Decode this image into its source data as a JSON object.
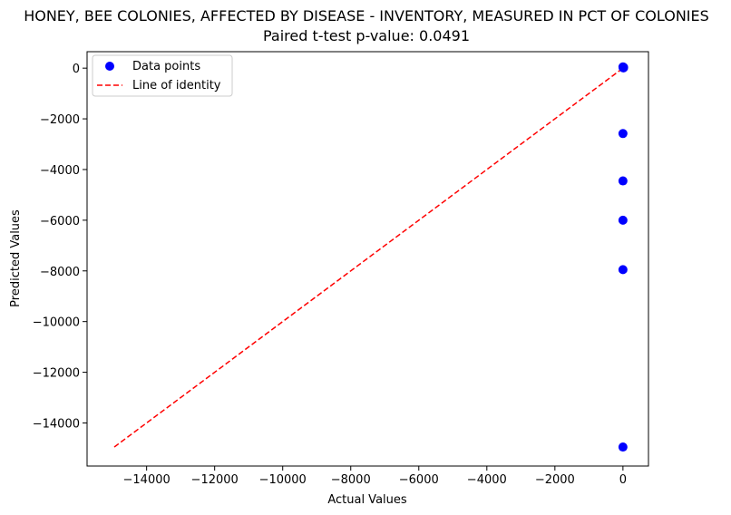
{
  "chart_data": {
    "type": "scatter",
    "title": "HONEY, BEE COLONIES, AFFECTED BY DISEASE - INVENTORY, MEASURED IN PCT OF COLONIES",
    "subtitle": "Paired t-test p-value: 0.0491",
    "xlabel": "Actual Values",
    "ylabel": "Predicted Values",
    "xlim": [
      -15750,
      750
    ],
    "ylim": [
      -15700,
      650
    ],
    "xticks": [
      -14000,
      -12000,
      -10000,
      -8000,
      -6000,
      -4000,
      -2000,
      0
    ],
    "yticks": [
      0,
      -2000,
      -4000,
      -6000,
      -8000,
      -10000,
      -12000,
      -14000
    ],
    "xtick_labels": [
      "−14000",
      "−12000",
      "−10000",
      "−8000",
      "−6000",
      "−4000",
      "−2000",
      "0"
    ],
    "ytick_labels": [
      "0",
      "−2000",
      "−4000",
      "−6000",
      "−8000",
      "−10000",
      "−12000",
      "−14000"
    ],
    "series": [
      {
        "name": "Data points",
        "kind": "scatter",
        "color": "#0000ff",
        "points": [
          {
            "x": 0,
            "y": 50
          },
          {
            "x": 10,
            "y": 40
          },
          {
            "x": 20,
            "y": 30
          },
          {
            "x": 5,
            "y": 20
          },
          {
            "x": 15,
            "y": 10
          },
          {
            "x": 0,
            "y": -2580
          },
          {
            "x": 0,
            "y": -4450
          },
          {
            "x": 0,
            "y": -6000
          },
          {
            "x": 0,
            "y": -7950
          },
          {
            "x": 0,
            "y": -14950
          }
        ]
      },
      {
        "name": "Line of identity",
        "kind": "line",
        "style": "dashed",
        "color": "#ff0000",
        "points": [
          {
            "x": -14950,
            "y": -14950
          },
          {
            "x": 50,
            "y": 50
          }
        ]
      }
    ],
    "legend": {
      "position": "top-left"
    },
    "grid": false
  }
}
